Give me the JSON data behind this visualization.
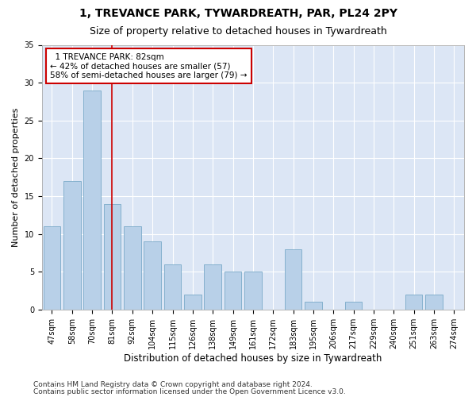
{
  "title1": "1, TREVANCE PARK, TYWARDREATH, PAR, PL24 2PY",
  "title2": "Size of property relative to detached houses in Tywardreath",
  "xlabel": "Distribution of detached houses by size in Tywardreath",
  "ylabel": "Number of detached properties",
  "categories": [
    "47sqm",
    "58sqm",
    "70sqm",
    "81sqm",
    "92sqm",
    "104sqm",
    "115sqm",
    "126sqm",
    "138sqm",
    "149sqm",
    "161sqm",
    "172sqm",
    "183sqm",
    "195sqm",
    "206sqm",
    "217sqm",
    "229sqm",
    "240sqm",
    "251sqm",
    "263sqm",
    "274sqm"
  ],
  "values": [
    11,
    17,
    29,
    14,
    11,
    9,
    6,
    2,
    6,
    5,
    5,
    0,
    8,
    1,
    0,
    1,
    0,
    0,
    2,
    2,
    0
  ],
  "bar_color": "#b8d0e8",
  "bar_edge_color": "#7aaac8",
  "bar_width": 0.85,
  "vline_x": 3.0,
  "vline_color": "#cc0000",
  "annotation_text": "  1 TREVANCE PARK: 82sqm  \n← 42% of detached houses are smaller (57)\n58% of semi-detached houses are larger (79) →",
  "annotation_box_color": "#cc0000",
  "ylim": [
    0,
    35
  ],
  "yticks": [
    0,
    5,
    10,
    15,
    20,
    25,
    30,
    35
  ],
  "footer1": "Contains HM Land Registry data © Crown copyright and database right 2024.",
  "footer2": "Contains public sector information licensed under the Open Government Licence v3.0.",
  "background_color": "#dce6f5",
  "grid_color": "#ffffff",
  "title1_fontsize": 10,
  "title2_fontsize": 9,
  "xlabel_fontsize": 8.5,
  "ylabel_fontsize": 8,
  "tick_fontsize": 7,
  "footer_fontsize": 6.5,
  "annot_fontsize": 7.5
}
